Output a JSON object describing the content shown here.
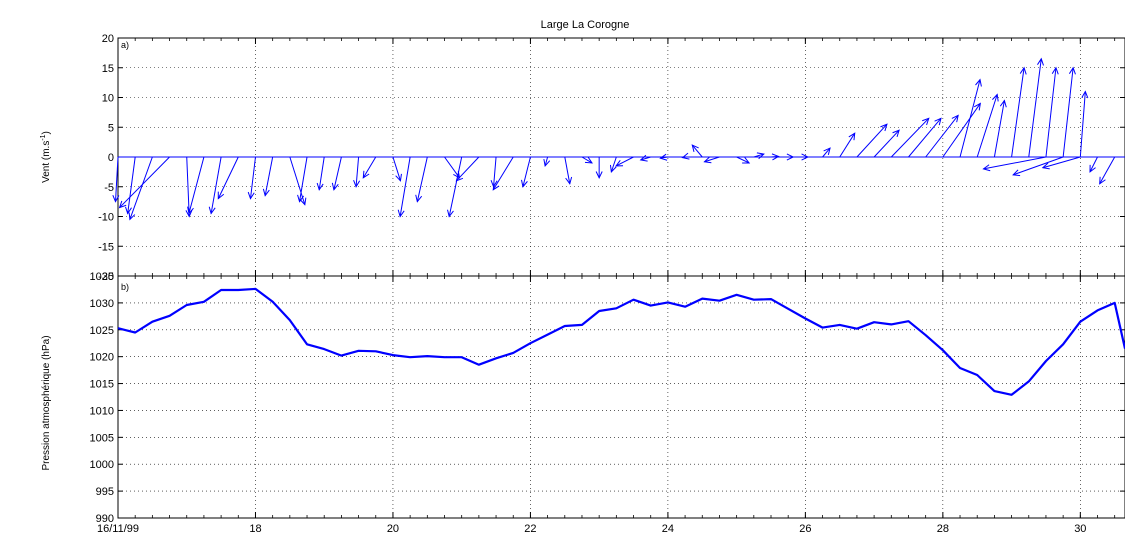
{
  "chart_data": [
    {
      "type": "quiver",
      "title": "Large La Corogne",
      "panel_label": "a)",
      "ylabel": "Vent (m.s",
      "ylabel_sup": "-1",
      "ylabel_suffix": ")",
      "ylim": [
        -20,
        20
      ],
      "yticks": [
        -20,
        -15,
        -10,
        -5,
        0,
        5,
        10,
        15,
        20
      ],
      "xlim": [
        16,
        30.65
      ],
      "grid": true,
      "color": "#0000ff",
      "vectors": [
        {
          "x": 16.0,
          "u": -0.1,
          "v": -7.5
        },
        {
          "x": 16.25,
          "u": -0.3,
          "v": -9.5
        },
        {
          "x": 16.5,
          "u": -0.9,
          "v": -10.5
        },
        {
          "x": 16.75,
          "u": -2.0,
          "v": -8.5
        },
        {
          "x": 17.0,
          "u": 0.1,
          "v": -10.0
        },
        {
          "x": 17.25,
          "u": -0.6,
          "v": -9.5
        },
        {
          "x": 17.5,
          "u": -0.4,
          "v": -9.5
        },
        {
          "x": 17.75,
          "u": -0.8,
          "v": -7.0
        },
        {
          "x": 18.0,
          "u": -0.2,
          "v": -7.0
        },
        {
          "x": 18.25,
          "u": -0.3,
          "v": -6.5
        },
        {
          "x": 18.5,
          "u": 0.6,
          "v": -8.0
        },
        {
          "x": 18.75,
          "u": -0.3,
          "v": -7.5
        },
        {
          "x": 19.0,
          "u": -0.2,
          "v": -5.5
        },
        {
          "x": 19.25,
          "u": -0.3,
          "v": -5.5
        },
        {
          "x": 19.5,
          "u": -0.1,
          "v": -5.0
        },
        {
          "x": 19.75,
          "u": -0.5,
          "v": -3.5
        },
        {
          "x": 20.0,
          "u": 0.3,
          "v": -4.0
        },
        {
          "x": 20.25,
          "u": -0.4,
          "v": -10.0
        },
        {
          "x": 20.5,
          "u": -0.4,
          "v": -7.5
        },
        {
          "x": 20.75,
          "u": 0.6,
          "v": -3.5
        },
        {
          "x": 21.0,
          "u": -0.5,
          "v": -10.0
        },
        {
          "x": 21.25,
          "u": -0.9,
          "v": -4.0
        },
        {
          "x": 21.5,
          "u": -0.1,
          "v": -5.0
        },
        {
          "x": 21.75,
          "u": -0.8,
          "v": -5.5
        },
        {
          "x": 22.0,
          "u": -0.3,
          "v": -5.0
        },
        {
          "x": 22.25,
          "u": -0.1,
          "v": -1.5
        },
        {
          "x": 22.5,
          "u": 0.2,
          "v": -4.5
        },
        {
          "x": 22.75,
          "u": 0.4,
          "v": -1.0
        },
        {
          "x": 23.0,
          "u": 0.0,
          "v": -3.5
        },
        {
          "x": 23.25,
          "u": -0.2,
          "v": -2.5
        },
        {
          "x": 23.5,
          "u": -0.7,
          "v": -1.5
        },
        {
          "x": 23.75,
          "u": -0.4,
          "v": -0.5
        },
        {
          "x": 24.0,
          "u": -0.3,
          "v": -0.2
        },
        {
          "x": 24.25,
          "u": -0.1,
          "v": -0.1
        },
        {
          "x": 24.5,
          "u": -0.4,
          "v": 2.0
        },
        {
          "x": 24.75,
          "u": -0.6,
          "v": -0.8
        },
        {
          "x": 25.0,
          "u": 0.5,
          "v": -1.0
        },
        {
          "x": 25.25,
          "u": 0.4,
          "v": 0.5
        },
        {
          "x": 25.5,
          "u": 0.3,
          "v": 0.1
        },
        {
          "x": 25.75,
          "u": 0.2,
          "v": 0.0
        },
        {
          "x": 26.0,
          "u": 0.1,
          "v": 0.0
        },
        {
          "x": 26.25,
          "u": 0.3,
          "v": 1.5
        },
        {
          "x": 26.5,
          "u": 0.6,
          "v": 4.0
        },
        {
          "x": 26.75,
          "u": 1.2,
          "v": 5.5
        },
        {
          "x": 27.0,
          "u": 1.0,
          "v": 4.5
        },
        {
          "x": 27.25,
          "u": 1.5,
          "v": 6.5
        },
        {
          "x": 27.5,
          "u": 1.3,
          "v": 6.5
        },
        {
          "x": 27.75,
          "u": 1.3,
          "v": 7.0
        },
        {
          "x": 28.0,
          "u": 1.5,
          "v": 9.0
        },
        {
          "x": 28.25,
          "u": 0.8,
          "v": 13.0
        },
        {
          "x": 28.5,
          "u": 0.8,
          "v": 10.5
        },
        {
          "x": 28.75,
          "u": 0.4,
          "v": 9.5
        },
        {
          "x": 29.0,
          "u": 0.5,
          "v": 15.0
        },
        {
          "x": 29.25,
          "u": 0.5,
          "v": 16.5
        },
        {
          "x": 29.5,
          "u": 0.4,
          "v": 15.0
        },
        {
          "x": 29.75,
          "u": 0.4,
          "v": 15.0
        },
        {
          "x": 30.0,
          "u": 0.2,
          "v": 11.0
        },
        {
          "x": 30.25,
          "u": -0.3,
          "v": -2.5
        },
        {
          "x": 30.5,
          "u": -0.6,
          "v": -4.5
        },
        {
          "x": 29.5,
          "u": -2.5,
          "v": -2.0
        },
        {
          "x": 29.75,
          "u": -2.0,
          "v": -3.0
        },
        {
          "x": 30.0,
          "u": -1.5,
          "v": -1.8
        }
      ]
    },
    {
      "type": "line",
      "panel_label": "b)",
      "ylabel": "Pression atmosphérique (hPa)",
      "ylim": [
        990,
        1035
      ],
      "yticks": [
        990,
        995,
        1000,
        1005,
        1010,
        1015,
        1020,
        1025,
        1030,
        1035
      ],
      "xlim": [
        16,
        30.65
      ],
      "xticks": [
        16,
        18,
        20,
        22,
        24,
        26,
        28,
        30
      ],
      "xticklabels": [
        "16/11/99",
        "18",
        "20",
        "22",
        "24",
        "26",
        "28",
        "30"
      ],
      "grid": true,
      "color": "#0000ff",
      "x": [
        16.0,
        16.25,
        16.5,
        16.75,
        17.0,
        17.25,
        17.5,
        17.75,
        18.0,
        18.25,
        18.5,
        18.75,
        19.0,
        19.25,
        19.5,
        19.75,
        20.0,
        20.25,
        20.5,
        20.75,
        21.0,
        21.25,
        21.5,
        21.75,
        22.0,
        22.25,
        22.5,
        22.75,
        23.0,
        23.25,
        23.5,
        23.75,
        24.0,
        24.25,
        24.5,
        24.75,
        25.0,
        25.25,
        25.5,
        25.75,
        26.0,
        26.25,
        26.5,
        26.75,
        27.0,
        27.25,
        27.5,
        27.75,
        28.0,
        28.25,
        28.5,
        28.75,
        29.0,
        29.25,
        29.5,
        29.75,
        30.0,
        30.25,
        30.5,
        30.65
      ],
      "y": [
        1025.3,
        1024.5,
        1026.5,
        1027.6,
        1029.6,
        1030.2,
        1032.4,
        1032.4,
        1032.6,
        1030.2,
        1026.8,
        1022.3,
        1021.4,
        1020.2,
        1021.1,
        1021.0,
        1020.3,
        1019.9,
        1020.1,
        1019.9,
        1019.9,
        1018.5,
        1019.7,
        1020.7,
        1022.5,
        1024.1,
        1025.7,
        1025.9,
        1028.5,
        1029.0,
        1030.6,
        1029.5,
        1030.1,
        1029.3,
        1030.8,
        1030.4,
        1031.5,
        1030.6,
        1030.7,
        1028.9,
        1027.1,
        1025.4,
        1025.9,
        1025.2,
        1026.4,
        1026.0,
        1026.6,
        1024.0,
        1021.2,
        1017.9,
        1016.6,
        1013.6,
        1012.9,
        1015.4,
        1019.2,
        1022.3,
        1026.5,
        1028.6,
        1030.0,
        1021.5
      ]
    }
  ]
}
